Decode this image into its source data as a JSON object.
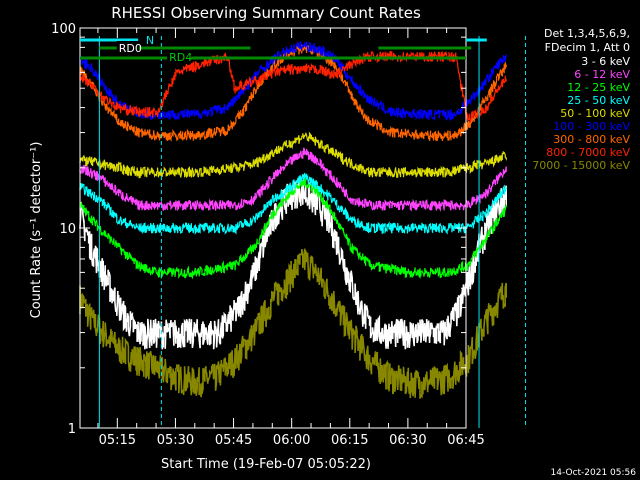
{
  "chart_data": {
    "type": "line",
    "title": "RHESSI Observing Summary Count Rates",
    "xlabel": "Start Time (19-Feb-07 05:05:22)",
    "ylabel": "Count Rate (s⁻¹ detector⁻¹)",
    "y_scale": "log",
    "ylim": [
      1,
      100
    ],
    "xlim": [
      "05:05:22",
      "06:45:00"
    ],
    "x_ticks": [
      "05:15",
      "05:30",
      "05:45",
      "06:00",
      "06:15",
      "06:30",
      "06:45"
    ],
    "y_ticks": [
      "1",
      "10",
      "100"
    ],
    "legend_header": [
      "Det 1,3,4,5,6,9,",
      "FDecim 1, Att 0"
    ],
    "legend_position": "right",
    "markers": {
      "rd0": "RD0",
      "rd4": "RD4",
      "n": "N"
    },
    "vertical_lines_minutes": [
      5.0,
      21.0,
      103.0,
      115.0
    ],
    "series": [
      {
        "name": "3 - 6 keV",
        "color": "#ffffff",
        "x": [
          0,
          3,
          6,
          9,
          12,
          15,
          18,
          21,
          24,
          30,
          36,
          41,
          45,
          48,
          51,
          54,
          57,
          60,
          63,
          66,
          69,
          72,
          75,
          78,
          84,
          90,
          94,
          98,
          101,
          103,
          106,
          110
        ],
        "y": [
          12,
          8,
          6,
          4.5,
          3.5,
          3,
          3,
          3,
          3,
          3,
          3,
          4,
          6,
          9,
          12.5,
          14.5,
          15.5,
          14,
          12,
          9,
          6,
          4.2,
          3.2,
          3,
          3,
          3,
          3,
          4,
          6,
          8,
          11,
          15
        ]
      },
      {
        "name": "6 - 12 keV",
        "color": "#ff44ff",
        "x": [
          0,
          5,
          10,
          15,
          20,
          30,
          40,
          45,
          50,
          55,
          58,
          61,
          65,
          70,
          75,
          85,
          95,
          100,
          105,
          110
        ],
        "y": [
          20,
          18,
          15,
          13,
          13,
          13,
          13,
          14,
          18,
          22,
          24,
          22,
          18,
          14,
          13,
          13,
          13,
          13,
          15,
          20
        ]
      },
      {
        "name": "12 - 25 keV",
        "color": "#00ff00",
        "x": [
          0,
          5,
          10,
          15,
          20,
          30,
          40,
          45,
          50,
          55,
          58,
          61,
          65,
          70,
          75,
          85,
          95,
          100,
          105,
          110
        ],
        "y": [
          13,
          10,
          8,
          6.5,
          6,
          6,
          6.5,
          8,
          12,
          15.5,
          17,
          15.5,
          12,
          8,
          6.5,
          6,
          6,
          6.5,
          9,
          12.5
        ]
      },
      {
        "name": "25 - 50 keV",
        "color": "#00ffff",
        "x": [
          0,
          5,
          10,
          15,
          20,
          30,
          40,
          45,
          50,
          55,
          58,
          61,
          65,
          70,
          75,
          85,
          95,
          100,
          105,
          110
        ],
        "y": [
          16,
          14,
          11,
          10,
          10,
          10,
          10,
          11,
          14,
          16.5,
          18,
          16.5,
          14,
          11,
          10,
          10,
          10,
          10,
          12,
          16
        ]
      },
      {
        "name": "50 - 100 keV",
        "color": "#dddd00",
        "x": [
          0,
          5,
          10,
          15,
          20,
          30,
          40,
          45,
          50,
          55,
          58,
          61,
          65,
          70,
          75,
          85,
          95,
          100,
          105,
          110
        ],
        "y": [
          22,
          21,
          20,
          19,
          19,
          19,
          20,
          21,
          24,
          27,
          29,
          27,
          24,
          21,
          19,
          19,
          19,
          20,
          21,
          23
        ]
      },
      {
        "name": "100 - 300 keV",
        "color": "#0000ff",
        "x": [
          0,
          3,
          6,
          10,
          15,
          20,
          30,
          38,
          42,
          46,
          50,
          54,
          58,
          62,
          66,
          70,
          74,
          80,
          90,
          97,
          101,
          105,
          108,
          110
        ],
        "y": [
          70,
          63,
          52,
          42,
          37,
          37,
          37,
          40,
          48,
          60,
          70,
          78,
          82,
          78,
          70,
          55,
          45,
          38,
          37,
          37,
          44,
          55,
          66,
          72
        ]
      },
      {
        "name": "300 - 800 keV",
        "color": "#ff6600",
        "x": [
          0,
          3,
          6,
          10,
          15,
          20,
          30,
          38,
          42,
          46,
          50,
          54,
          58,
          62,
          66,
          70,
          74,
          80,
          90,
          97,
          101,
          105,
          108,
          110
        ],
        "y": [
          62,
          52,
          42,
          34,
          30,
          29,
          29,
          31,
          38,
          52,
          65,
          75,
          80,
          75,
          65,
          46,
          35,
          30,
          29,
          29,
          34,
          45,
          57,
          65
        ]
      },
      {
        "name": "800 - 7000 keV",
        "color": "#ff2200",
        "x": [
          0,
          3,
          6,
          10,
          15,
          20,
          25,
          30,
          38,
          40,
          46,
          50,
          54,
          58,
          62,
          66,
          70,
          74,
          80,
          90,
          97,
          100,
          105,
          108,
          110
        ],
        "y": [
          58,
          52,
          45,
          40,
          38,
          38,
          60,
          65,
          72,
          50,
          55,
          60,
          62,
          62,
          62,
          58,
          66,
          72,
          72,
          72,
          72,
          35,
          40,
          50,
          55
        ]
      },
      {
        "name": "7000 - 15000 keV",
        "color": "#888800",
        "x": [
          0,
          3,
          6,
          10,
          15,
          20,
          25,
          30,
          35,
          40,
          45,
          50,
          55,
          58,
          61,
          65,
          70,
          75,
          80,
          85,
          90,
          95,
          100,
          105,
          110
        ],
        "y": [
          4.5,
          3.5,
          3,
          2.5,
          2.2,
          2.0,
          1.8,
          1.7,
          1.8,
          2.2,
          3,
          4.5,
          6,
          7,
          6,
          4.5,
          3,
          2.2,
          1.8,
          1.7,
          1.7,
          1.8,
          2.2,
          3.5,
          5
        ]
      }
    ]
  },
  "footer": {
    "timestamp": "14-Oct-2021 05:56"
  }
}
